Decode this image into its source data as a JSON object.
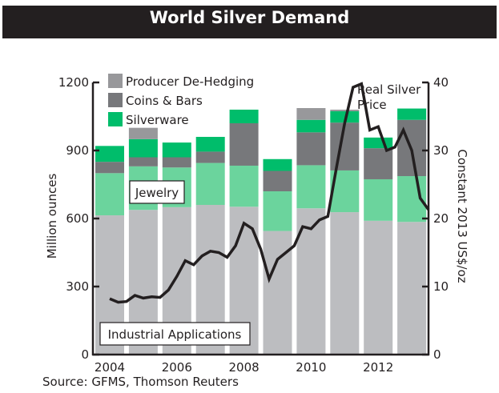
{
  "chart_data": {
    "type": "bar",
    "stacked": true,
    "title": "World Silver Demand",
    "source": "Source: GFMS, Thomson Reuters",
    "ylabel": "Million ounces",
    "y2label": "Constant 2013 US$/oz",
    "ylim": [
      0,
      1200
    ],
    "y2lim": [
      0,
      40
    ],
    "yticks": [
      0,
      300,
      600,
      900,
      1200
    ],
    "y2ticks": [
      0,
      10,
      20,
      30,
      40
    ],
    "xtick_labels": [
      "2004",
      "2006",
      "2008",
      "2010",
      "2012"
    ],
    "categories": [
      "2004",
      "2005",
      "2006",
      "2007",
      "2008",
      "2009",
      "2010",
      "2011",
      "2012",
      "2013"
    ],
    "series": [
      {
        "name": "Industrial Applications",
        "color": "#bcbdc0",
        "values": [
          614,
          638,
          650,
          660,
          652,
          545,
          645,
          628,
          590,
          585
        ]
      },
      {
        "name": "Jewelry",
        "color": "#6bd49d",
        "values": [
          186,
          192,
          175,
          185,
          181,
          175,
          190,
          184,
          183,
          202
        ]
      },
      {
        "name": "Coins & Bars",
        "color": "#77787b",
        "values": [
          50,
          40,
          45,
          50,
          187,
          90,
          145,
          211,
          137,
          248
        ]
      },
      {
        "name": "Silverware",
        "color": "#00bd6b",
        "values": [
          70,
          80,
          65,
          65,
          60,
          52,
          55,
          50,
          47,
          50
        ]
      },
      {
        "name": "Producer De-Hedging",
        "color": "#98989b",
        "values": [
          0,
          50,
          0,
          0,
          0,
          0,
          52,
          7,
          0,
          0
        ]
      }
    ],
    "legend": [
      "Producer De-Hedging",
      "Coins & Bars",
      "Silverware"
    ],
    "legend_position": "top-left",
    "inline_labels": [
      "Jewelry",
      "Industrial Applications",
      "Real Silver Price"
    ],
    "line_series": {
      "name": "Real Silver Price",
      "axis": "right",
      "color": "#231f20",
      "x": [
        2004.0,
        2004.25,
        2004.5,
        2004.75,
        2005.0,
        2005.25,
        2005.5,
        2005.75,
        2006.0,
        2006.25,
        2006.5,
        2006.75,
        2007.0,
        2007.25,
        2007.5,
        2007.75,
        2008.0,
        2008.25,
        2008.5,
        2008.75,
        2009.0,
        2009.25,
        2009.5,
        2009.75,
        2010.0,
        2010.25,
        2010.5,
        2010.75,
        2011.0,
        2011.25,
        2011.5,
        2011.75,
        2012.0,
        2012.25,
        2012.5,
        2012.75,
        2013.0,
        2013.25,
        2013.5
      ],
      "values": [
        8.2,
        7.7,
        7.8,
        8.7,
        8.3,
        8.5,
        8.4,
        9.5,
        11.5,
        13.8,
        13.2,
        14.5,
        15.2,
        15.0,
        14.3,
        16.0,
        19.3,
        18.5,
        15.5,
        11.1,
        14.0,
        15.0,
        16.0,
        18.8,
        18.5,
        19.8,
        20.3,
        27.3,
        34.0,
        39.3,
        39.8,
        33.0,
        33.5,
        30.0,
        30.5,
        33.0,
        30.0,
        23.0,
        21.3
      ]
    }
  },
  "labels": {
    "title": "World Silver Demand",
    "source": "Source: GFMS, Thomson Reuters",
    "jewelry": "Jewelry",
    "industrial": "Industrial Applications",
    "price_line1": "Real Silver",
    "price_line2": "Price",
    "ylabel": "Million ounces",
    "y2label": "Constant 2013 US$/oz"
  }
}
